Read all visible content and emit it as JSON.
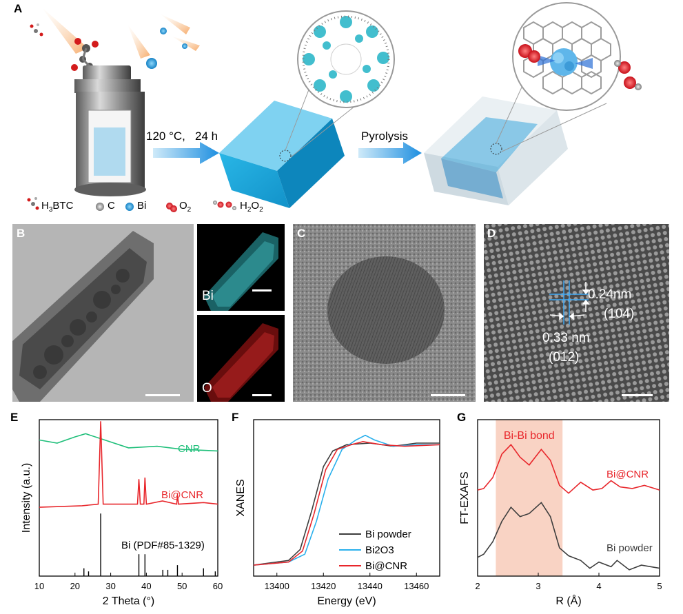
{
  "panels": {
    "a": "A",
    "b": "B",
    "c": "C",
    "d": "D",
    "e": "E",
    "f": "F",
    "g": "G"
  },
  "schematic": {
    "step1": "120 °C,",
    "step1_time": "24 h",
    "step2": "Pyrolysis",
    "legend": {
      "h3btc": "H3BTC",
      "c": "C",
      "bi": "Bi",
      "o2": "O2",
      "h2o2": "H2O2"
    }
  },
  "tem": {
    "eds_bi": "Bi",
    "eds_o": "O",
    "lattice1": "0.24nm",
    "plane1": "(104)",
    "lattice2": "0.33 nm",
    "plane2": "(012)"
  },
  "colors": {
    "cnr": "#1fbf7a",
    "bi_cnr": "#e8262b",
    "bi2o3": "#2ab0ec",
    "bi_powder": "#3d3d3d",
    "shade": "#f9d3c4"
  },
  "chart_data": [
    {
      "type": "line",
      "panel": "E",
      "xlabel": "2 Theta (°)",
      "ylabel": "Intensity (a.u.)",
      "xlim": [
        10,
        60
      ],
      "xticks": [
        10,
        20,
        30,
        40,
        50,
        60
      ],
      "series": [
        {
          "name": "CNR",
          "points": [
            [
              10,
              0.87
            ],
            [
              15,
              0.85
            ],
            [
              20,
              0.89
            ],
            [
              23,
              0.91
            ],
            [
              27,
              0.88
            ],
            [
              35,
              0.82
            ],
            [
              43,
              0.83
            ],
            [
              50,
              0.81
            ],
            [
              60,
              0.8
            ]
          ]
        },
        {
          "name": "Bi@CNR",
          "points": [
            [
              10,
              0.44
            ],
            [
              22,
              0.45
            ],
            [
              26.5,
              0.46
            ],
            [
              27.2,
              0.99
            ],
            [
              27.9,
              0.46
            ],
            [
              37.5,
              0.46
            ],
            [
              37.9,
              0.62
            ],
            [
              38.3,
              0.46
            ],
            [
              39.3,
              0.46
            ],
            [
              39.6,
              0.63
            ],
            [
              40,
              0.46
            ],
            [
              44.5,
              0.48
            ],
            [
              48.5,
              0.46
            ],
            [
              48.7,
              0.52
            ],
            [
              49,
              0.46
            ],
            [
              56,
              0.47
            ],
            [
              60,
              0.46
            ]
          ]
        }
      ],
      "reference": {
        "name": "Bi (PDF#85-1329)",
        "peaks": [
          [
            22.5,
            0.05
          ],
          [
            23.8,
            0.03
          ],
          [
            27.2,
            0.4
          ],
          [
            37.9,
            0.14
          ],
          [
            39.6,
            0.14
          ],
          [
            44.6,
            0.04
          ],
          [
            46.0,
            0.04
          ],
          [
            48.7,
            0.07
          ],
          [
            56.0,
            0.05
          ],
          [
            59.3,
            0.03
          ]
        ]
      }
    },
    {
      "type": "line",
      "panel": "F",
      "xlabel": "Energy (eV)",
      "ylabel": "XANES",
      "xlim": [
        13390,
        13470
      ],
      "xticks": [
        13400,
        13420,
        13440,
        13460
      ],
      "series": [
        {
          "name": "Bi powder",
          "points": [
            [
              13390,
              0.07
            ],
            [
              13405,
              0.1
            ],
            [
              13410,
              0.17
            ],
            [
              13415,
              0.42
            ],
            [
              13420,
              0.7
            ],
            [
              13424,
              0.8
            ],
            [
              13430,
              0.84
            ],
            [
              13440,
              0.85
            ],
            [
              13450,
              0.83
            ],
            [
              13460,
              0.85
            ],
            [
              13470,
              0.85
            ]
          ]
        },
        {
          "name": "Bi2O3",
          "points": [
            [
              13390,
              0.07
            ],
            [
              13405,
              0.09
            ],
            [
              13412,
              0.14
            ],
            [
              13417,
              0.35
            ],
            [
              13422,
              0.62
            ],
            [
              13428,
              0.81
            ],
            [
              13434,
              0.87
            ],
            [
              13438,
              0.9
            ],
            [
              13442,
              0.87
            ],
            [
              13450,
              0.83
            ],
            [
              13460,
              0.84
            ],
            [
              13470,
              0.84
            ]
          ]
        },
        {
          "name": "Bi@CNR",
          "points": [
            [
              13390,
              0.07
            ],
            [
              13405,
              0.09
            ],
            [
              13411,
              0.16
            ],
            [
              13416,
              0.4
            ],
            [
              13421,
              0.68
            ],
            [
              13426,
              0.81
            ],
            [
              13432,
              0.84
            ],
            [
              13437,
              0.86
            ],
            [
              13445,
              0.84
            ],
            [
              13455,
              0.83
            ],
            [
              13470,
              0.84
            ]
          ]
        }
      ]
    },
    {
      "type": "line",
      "panel": "G",
      "xlabel": "R (Å)",
      "ylabel": "FT-EXAFS",
      "xlim": [
        2,
        5
      ],
      "xticks": [
        2,
        3,
        4,
        5
      ],
      "shaded": {
        "label": "Bi-Bi bond",
        "from": 2.3,
        "to": 3.4
      },
      "series": [
        {
          "name": "Bi@CNR",
          "points": [
            [
              2,
              0.55
            ],
            [
              2.1,
              0.56
            ],
            [
              2.25,
              0.63
            ],
            [
              2.4,
              0.78
            ],
            [
              2.55,
              0.84
            ],
            [
              2.7,
              0.76
            ],
            [
              2.85,
              0.71
            ],
            [
              3.05,
              0.81
            ],
            [
              3.2,
              0.74
            ],
            [
              3.35,
              0.58
            ],
            [
              3.5,
              0.53
            ],
            [
              3.7,
              0.6
            ],
            [
              3.9,
              0.55
            ],
            [
              4.05,
              0.56
            ],
            [
              4.2,
              0.61
            ],
            [
              4.35,
              0.57
            ],
            [
              4.55,
              0.56
            ],
            [
              4.75,
              0.58
            ],
            [
              5,
              0.55
            ]
          ]
        },
        {
          "name": "Bi powder",
          "points": [
            [
              2,
              0.12
            ],
            [
              2.1,
              0.14
            ],
            [
              2.25,
              0.22
            ],
            [
              2.4,
              0.35
            ],
            [
              2.55,
              0.44
            ],
            [
              2.7,
              0.38
            ],
            [
              2.85,
              0.4
            ],
            [
              3.05,
              0.47
            ],
            [
              3.2,
              0.38
            ],
            [
              3.35,
              0.18
            ],
            [
              3.5,
              0.13
            ],
            [
              3.7,
              0.1
            ],
            [
              3.85,
              0.05
            ],
            [
              4.0,
              0.09
            ],
            [
              4.2,
              0.06
            ],
            [
              4.3,
              0.1
            ],
            [
              4.5,
              0.04
            ],
            [
              4.7,
              0.07
            ],
            [
              5,
              0.05
            ]
          ]
        }
      ]
    }
  ]
}
